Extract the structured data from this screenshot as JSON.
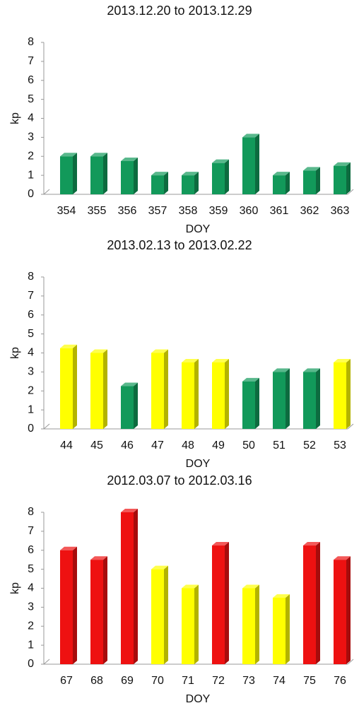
{
  "chart_data": [
    {
      "type": "bar",
      "title": "2013.12.20 to 2013.12.29",
      "x_label": "DOY",
      "y_label": "kp",
      "categories": [
        "354",
        "355",
        "356",
        "357",
        "358",
        "359",
        "360",
        "361",
        "362",
        "363"
      ],
      "values": [
        2,
        2,
        1.75,
        1,
        1,
        1.65,
        3,
        1,
        1.25,
        1.5
      ],
      "colors": [
        "#12995a",
        "#12995a",
        "#12995a",
        "#12995a",
        "#12995a",
        "#12995a",
        "#12995a",
        "#12995a",
        "#12995a",
        "#12995a"
      ],
      "ylim": [
        0,
        8
      ],
      "yticks": [
        0,
        1,
        2,
        3,
        4,
        5,
        6,
        7,
        8
      ]
    },
    {
      "type": "bar",
      "title": "2013.02.13 to 2013.02.22",
      "x_label": "DOY",
      "y_label": "kp",
      "categories": [
        "44",
        "45",
        "46",
        "47",
        "48",
        "49",
        "50",
        "51",
        "52",
        "53"
      ],
      "values": [
        4.25,
        4,
        2.25,
        4,
        3.5,
        3.5,
        2.5,
        3,
        3,
        3.5
      ],
      "colors": [
        "#ffff00",
        "#ffff00",
        "#12995a",
        "#ffff00",
        "#ffff00",
        "#ffff00",
        "#12995a",
        "#12995a",
        "#12995a",
        "#ffff00"
      ],
      "ylim": [
        0,
        8
      ],
      "yticks": [
        0,
        1,
        2,
        3,
        4,
        5,
        6,
        7,
        8
      ]
    },
    {
      "type": "bar",
      "title": "2012.03.07 to 2012.03.16",
      "x_label": "DOY",
      "y_label": "kp",
      "categories": [
        "67",
        "68",
        "69",
        "70",
        "71",
        "72",
        "73",
        "74",
        "75",
        "76"
      ],
      "values": [
        6,
        5.5,
        8,
        5,
        4,
        6.25,
        4,
        3.5,
        6.25,
        5.5
      ],
      "colors": [
        "#ee1111",
        "#ee1111",
        "#ee1111",
        "#ffff00",
        "#ffff00",
        "#ee1111",
        "#ffff00",
        "#ffff00",
        "#ee1111",
        "#ee1111"
      ],
      "ylim": [
        0,
        8
      ],
      "yticks": [
        0,
        1,
        2,
        3,
        4,
        5,
        6,
        7,
        8
      ]
    }
  ]
}
